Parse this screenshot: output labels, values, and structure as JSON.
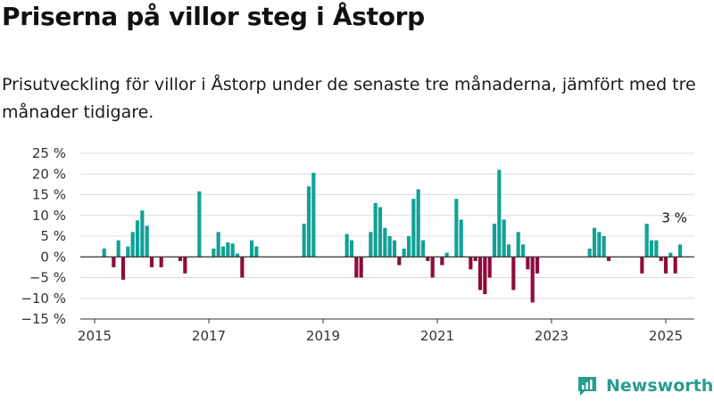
{
  "title": "Priserna på villor steg i Åstorp",
  "subtitle": "Prisutveckling för villor i Åstorp under de senaste tre månaderna, jämfört med tre månader tidigare.",
  "brand": "Newsworthy",
  "colors": {
    "positive": "#12a196",
    "negative": "#8e0b3c",
    "grid": "#dddddd",
    "brand": "#2a9d8f"
  },
  "chart_data": {
    "type": "bar",
    "ylim": [
      -15,
      25
    ],
    "yticks": [
      -15,
      -10,
      -5,
      0,
      5,
      10,
      15,
      20,
      25
    ],
    "ytick_labels": [
      "−15 %",
      "−10 %",
      "−5 %",
      "0 %",
      "5 %",
      "10 %",
      "15 %",
      "20 %",
      "25 %"
    ],
    "xlim": [
      "2014-10",
      "2025-07"
    ],
    "xticks": [
      "2015-01",
      "2017-01",
      "2019-01",
      "2021-01",
      "2023-01",
      "2025-01"
    ],
    "xtick_labels": [
      "2015",
      "2017",
      "2019",
      "2021",
      "2023",
      "2025"
    ],
    "grid": true,
    "annotations": [
      {
        "x": "2025-03",
        "y": 3,
        "text": "3 %"
      }
    ],
    "series": [
      {
        "points": [
          [
            "2015-03",
            2
          ],
          [
            "2015-05",
            -2.5
          ],
          [
            "2015-06",
            4
          ],
          [
            "2015-07",
            -5.5
          ],
          [
            "2015-08",
            2.5
          ],
          [
            "2015-09",
            6
          ],
          [
            "2015-10",
            8.8
          ],
          [
            "2015-11",
            11.2
          ],
          [
            "2015-12",
            7.5
          ],
          [
            "2016-01",
            -2.5
          ],
          [
            "2016-03",
            -2.5
          ],
          [
            "2016-07",
            -1
          ],
          [
            "2016-08",
            -4
          ],
          [
            "2016-11",
            15.8
          ],
          [
            "2017-02",
            2
          ],
          [
            "2017-03",
            6
          ],
          [
            "2017-04",
            2.5
          ],
          [
            "2017-05",
            3.5
          ],
          [
            "2017-06",
            3.2
          ],
          [
            "2017-07",
            0.8
          ],
          [
            "2017-08",
            -5
          ],
          [
            "2017-10",
            4
          ],
          [
            "2017-11",
            2.5
          ],
          [
            "2018-09",
            8
          ],
          [
            "2018-10",
            17
          ],
          [
            "2018-11",
            20.3
          ],
          [
            "2019-06",
            5.5
          ],
          [
            "2019-07",
            4
          ],
          [
            "2019-08",
            -5
          ],
          [
            "2019-09",
            -5
          ],
          [
            "2019-11",
            6
          ],
          [
            "2019-12",
            13
          ],
          [
            "2020-01",
            12
          ],
          [
            "2020-02",
            7
          ],
          [
            "2020-03",
            5
          ],
          [
            "2020-04",
            4
          ],
          [
            "2020-05",
            -2
          ],
          [
            "2020-06",
            2
          ],
          [
            "2020-07",
            5
          ],
          [
            "2020-08",
            14
          ],
          [
            "2020-09",
            16.3
          ],
          [
            "2020-10",
            4
          ],
          [
            "2020-11",
            -1
          ],
          [
            "2020-12",
            -5
          ],
          [
            "2021-02",
            -2
          ],
          [
            "2021-03",
            1
          ],
          [
            "2021-05",
            14
          ],
          [
            "2021-06",
            9
          ],
          [
            "2021-08",
            -3
          ],
          [
            "2021-09",
            -1
          ],
          [
            "2021-10",
            -8
          ],
          [
            "2021-11",
            -9
          ],
          [
            "2021-12",
            -5
          ],
          [
            "2022-01",
            8
          ],
          [
            "2022-02",
            21
          ],
          [
            "2022-03",
            9
          ],
          [
            "2022-04",
            3
          ],
          [
            "2022-05",
            -8
          ],
          [
            "2022-06",
            6
          ],
          [
            "2022-07",
            3
          ],
          [
            "2022-08",
            -3
          ],
          [
            "2022-09",
            -11
          ],
          [
            "2022-10",
            -4
          ],
          [
            "2023-09",
            2
          ],
          [
            "2023-10",
            7
          ],
          [
            "2023-11",
            6
          ],
          [
            "2023-12",
            5
          ],
          [
            "2024-01",
            -1
          ],
          [
            "2024-08",
            -4
          ],
          [
            "2024-09",
            8
          ],
          [
            "2024-10",
            4
          ],
          [
            "2024-11",
            4
          ],
          [
            "2024-12",
            -1
          ],
          [
            "2025-01",
            -4
          ],
          [
            "2025-02",
            1
          ],
          [
            "2025-03",
            -4
          ],
          [
            "2025-04",
            3
          ]
        ]
      }
    ]
  }
}
